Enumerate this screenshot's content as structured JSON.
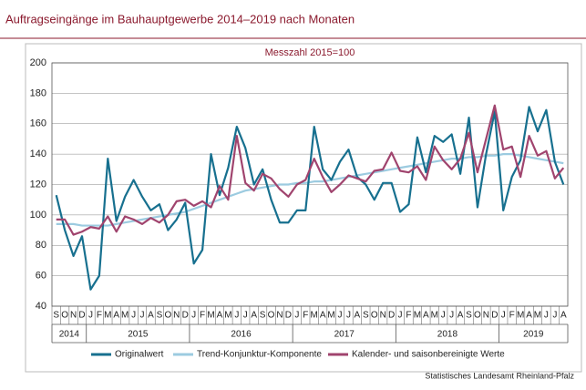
{
  "chart_data": {
    "type": "line",
    "title": "Auftragseingänge im Bauhauptgewerbe 2014–2019 nach Monaten",
    "subtitle": "Messzahl 2015=100",
    "source": "Statistisches Landesamt Rheinland-Pfalz",
    "categories": [
      "S",
      "O",
      "N",
      "D",
      "J",
      "F",
      "M",
      "A",
      "M",
      "J",
      "J",
      "A",
      "S",
      "O",
      "N",
      "D",
      "J",
      "F",
      "M",
      "A",
      "M",
      "J",
      "J",
      "A",
      "S",
      "O",
      "N",
      "D",
      "J",
      "F",
      "M",
      "A",
      "M",
      "J",
      "J",
      "A",
      "S",
      "O",
      "N",
      "D",
      "J",
      "F",
      "M",
      "A",
      "M",
      "J",
      "J",
      "A",
      "S",
      "O",
      "N",
      "D",
      "J",
      "F",
      "M",
      "A",
      "M",
      "J",
      "J",
      "A"
    ],
    "years": [
      "2014",
      "2015",
      "2016",
      "2017",
      "2018",
      "2019"
    ],
    "ylim": [
      40,
      200
    ],
    "yticks": [
      40,
      60,
      80,
      100,
      120,
      140,
      160,
      180,
      200
    ],
    "grid": true,
    "series": [
      {
        "name": "Originalwert",
        "color": "#17708f",
        "values": [
          113,
          90,
          73,
          86,
          51,
          60,
          137,
          96,
          112,
          123,
          112,
          103,
          107,
          90,
          97,
          108,
          68,
          77,
          140,
          113,
          131,
          158,
          144,
          120,
          130,
          110,
          95,
          95,
          103,
          103,
          158,
          130,
          123,
          135,
          143,
          125,
          120,
          110,
          121,
          121,
          102,
          107,
          151,
          128,
          152,
          148,
          153,
          127,
          164,
          105,
          140,
          168,
          103,
          125,
          136,
          171,
          155,
          169,
          135,
          120
        ]
      },
      {
        "name": "Trend-Konjunktur-Komponente",
        "color": "#9ccbe0",
        "values": [
          94,
          94,
          94,
          93,
          93,
          93,
          93,
          94,
          95,
          96,
          97,
          98,
          99,
          100,
          101,
          102,
          104,
          106,
          108,
          110,
          112,
          114,
          116,
          117,
          118,
          119,
          120,
          120,
          121,
          121,
          122,
          122,
          123,
          124,
          125,
          126,
          127,
          128,
          129,
          130,
          131,
          132,
          133,
          134,
          135,
          136,
          137,
          137,
          138,
          138,
          139,
          139,
          140,
          140,
          139,
          138,
          137,
          136,
          135,
          134
        ]
      },
      {
        "name": "Kalender- und saisonbereinigte Werte",
        "color": "#a0446e",
        "values": [
          97,
          97,
          87,
          89,
          92,
          91,
          99,
          89,
          99,
          97,
          94,
          98,
          95,
          100,
          109,
          110,
          106,
          109,
          105,
          119,
          110,
          152,
          121,
          116,
          127,
          124,
          117,
          112,
          120,
          123,
          137,
          125,
          115,
          120,
          126,
          124,
          122,
          129,
          130,
          141,
          129,
          128,
          132,
          123,
          145,
          136,
          130,
          137,
          154,
          128,
          150,
          172,
          143,
          145,
          125,
          152,
          139,
          142,
          124,
          131
        ]
      }
    ]
  }
}
